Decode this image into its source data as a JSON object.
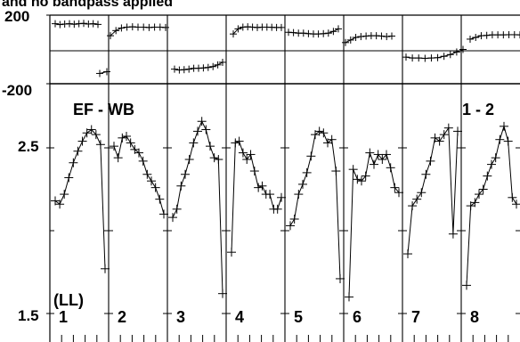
{
  "title_fragment": "and no bandpass applied",
  "chart_data": {
    "type": "line",
    "panels_count": 8,
    "top_plot": {
      "quantity": "phase",
      "y_ticks": [
        "200",
        "-200"
      ],
      "ylim": [
        -200,
        200
      ],
      "series": [
        [
          150,
          145,
          148,
          150,
          147,
          150,
          152,
          148,
          150,
          146
        ],
        [
          -140,
          -130
        ],
        [
          80,
          110,
          125,
          130,
          132,
          130,
          130,
          128,
          130,
          130,
          128
        ],
        [
          -115,
          -120,
          -118,
          -115,
          -110,
          -110,
          -108,
          -105,
          -100,
          -90,
          -75
        ],
        [
          90,
          120,
          130,
          132,
          130,
          128,
          130,
          130,
          129,
          128,
          128
        ],
        [
          100,
          98,
          95,
          95,
          92,
          90,
          90,
          92,
          95,
          105,
          120
        ],
        [
          40,
          55,
          70,
          75,
          78,
          80,
          80,
          78,
          75,
          78
        ],
        [
          -45,
          -50,
          -50,
          -52,
          -50,
          -48,
          -40,
          -30,
          -15,
          0
        ],
        [
          60,
          70,
          80,
          82,
          85,
          85,
          85,
          86,
          86,
          85
        ]
      ]
    },
    "bottom_plot": {
      "quantity": "amplitude",
      "title": "EF - WB",
      "y_ticks": [
        "2.5",
        "1.5"
      ],
      "ylim": [
        1.5,
        2.7
      ],
      "pol_label": "(LL)",
      "baseline_label": "1 - 2",
      "channel_labels": [
        "1",
        "2",
        "3",
        "4",
        "5",
        "6",
        "7",
        "8"
      ],
      "series": [
        [
          2.18,
          2.16,
          2.22,
          2.32,
          2.41,
          2.48,
          2.54,
          2.59,
          2.61,
          2.58,
          2.52,
          1.77
        ],
        [
          2.51,
          2.44,
          2.56,
          2.57,
          2.53,
          2.49,
          2.47,
          2.42,
          2.34,
          2.3,
          2.26,
          2.19,
          2.1
        ],
        [
          2.08,
          2.13,
          2.27,
          2.34,
          2.43,
          2.53,
          2.6,
          2.66,
          2.61,
          2.51,
          2.44,
          2.43,
          1.62
        ],
        [
          1.87,
          2.53,
          2.54,
          2.47,
          2.43,
          2.46,
          2.36,
          2.26,
          2.27,
          2.22,
          2.22,
          2.13,
          2.13,
          2.2
        ],
        [
          2.03,
          2.07,
          2.22,
          2.28,
          2.35,
          2.45,
          2.58,
          2.6,
          2.59,
          2.53,
          2.55,
          2.36,
          1.71
        ],
        [
          1.6,
          2.37,
          2.31,
          2.3,
          2.33,
          2.47,
          2.4,
          2.46,
          2.43,
          2.46,
          2.38,
          2.26,
          2.23
        ],
        [
          1.86,
          2.15,
          2.19,
          2.23,
          2.34,
          2.42,
          2.56,
          2.54,
          2.58,
          2.62,
          1.98,
          2.6
        ],
        [
          1.67,
          2.15,
          2.17,
          2.22,
          2.25,
          2.33,
          2.4,
          2.44,
          2.55,
          2.63,
          2.54,
          2.2,
          2.16
        ]
      ]
    }
  }
}
